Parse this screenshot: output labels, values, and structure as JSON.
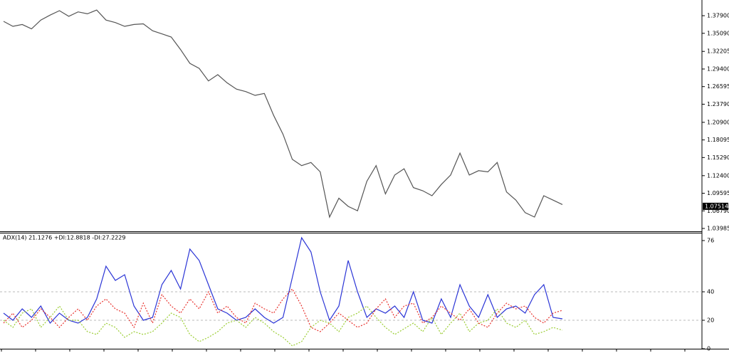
{
  "chart_data": [
    {
      "type": "line",
      "series": [
        {
          "color": "#555555",
          "values": [
            1.37,
            1.362,
            1.365,
            1.358,
            1.372,
            1.38,
            1.387,
            1.378,
            1.385,
            1.382,
            1.388,
            1.372,
            1.368,
            1.362,
            1.365,
            1.366,
            1.355,
            1.35,
            1.345,
            1.325,
            1.303,
            1.295,
            1.275,
            1.285,
            1.272,
            1.262,
            1.258,
            1.252,
            1.255,
            1.22,
            1.19,
            1.15,
            1.14,
            1.145,
            1.13,
            1.058,
            1.088,
            1.075,
            1.068,
            1.115,
            1.14,
            1.095,
            1.125,
            1.135,
            1.105,
            1.1,
            1.092,
            1.11,
            1.125,
            1.16,
            1.125,
            1.132,
            1.13,
            1.145,
            1.098,
            1.085,
            1.065,
            1.058,
            1.092,
            1.085,
            1.078
          ]
        }
      ],
      "ylim": [
        1.0353,
        1.404
      ],
      "yticks": [
        {
          "value": 1.379,
          "label": "1.37900"
        },
        {
          "value": 1.3509,
          "label": "1.35090"
        },
        {
          "value": 1.32205,
          "label": "1.32205"
        },
        {
          "value": 1.294,
          "label": "1.29400"
        },
        {
          "value": 1.26595,
          "label": "1.26595"
        },
        {
          "value": 1.2379,
          "label": "1.23790"
        },
        {
          "value": 1.209,
          "label": "1.20900"
        },
        {
          "value": 1.18095,
          "label": "1.18095"
        },
        {
          "value": 1.1529,
          "label": "1.15290"
        },
        {
          "value": 1.124,
          "label": "1.12400"
        },
        {
          "value": 1.09595,
          "label": "1.09595"
        },
        {
          "value": 1.0679,
          "label": "1.06790"
        },
        {
          "value": 1.03985,
          "label": "1.03985"
        }
      ],
      "last_price": {
        "value": 1.07514,
        "label": "1.07514"
      },
      "grid": false
    },
    {
      "type": "line",
      "title": "ADX(14) 21.1276 +DI:12.8818 -DI:27.2229",
      "series": [
        {
          "color": "#2b35d6",
          "line_style": "solid",
          "values": [
            25,
            20,
            28,
            22,
            30,
            18,
            25,
            20,
            18,
            22,
            35,
            58,
            48,
            52,
            30,
            20,
            22,
            45,
            55,
            42,
            70,
            62,
            45,
            28,
            25,
            20,
            22,
            28,
            22,
            18,
            22,
            50,
            78,
            68,
            40,
            20,
            30,
            62,
            40,
            22,
            28,
            25,
            30,
            22,
            40,
            20,
            18,
            35,
            22,
            45,
            30,
            22,
            38,
            22,
            28,
            30,
            25,
            38,
            45,
            22,
            21
          ]
        },
        {
          "color": "#9acd32",
          "line_style": "dotted",
          "values": [
            20,
            15,
            25,
            28,
            15,
            22,
            30,
            20,
            20,
            12,
            10,
            18,
            15,
            8,
            12,
            10,
            12,
            18,
            25,
            22,
            10,
            5,
            8,
            12,
            18,
            20,
            15,
            22,
            18,
            12,
            8,
            2,
            5,
            15,
            20,
            18,
            12,
            22,
            25,
            30,
            22,
            15,
            10,
            14,
            18,
            12,
            22,
            10,
            18,
            25,
            12,
            18,
            20,
            28,
            18,
            15,
            20,
            10,
            12,
            15,
            13
          ]
        },
        {
          "color": "#e8322d",
          "line_style": "dotted",
          "values": [
            18,
            25,
            15,
            20,
            28,
            22,
            15,
            22,
            28,
            20,
            30,
            35,
            28,
            25,
            15,
            32,
            18,
            38,
            30,
            25,
            35,
            28,
            40,
            25,
            30,
            22,
            18,
            32,
            28,
            25,
            35,
            42,
            30,
            15,
            12,
            18,
            25,
            20,
            15,
            18,
            28,
            35,
            22,
            30,
            32,
            18,
            22,
            30,
            25,
            20,
            28,
            18,
            15,
            25,
            32,
            28,
            30,
            22,
            18,
            25,
            27
          ]
        }
      ],
      "ylim": [
        0,
        80
      ],
      "yticks": [
        0,
        20,
        40,
        76
      ],
      "grid": true
    }
  ]
}
